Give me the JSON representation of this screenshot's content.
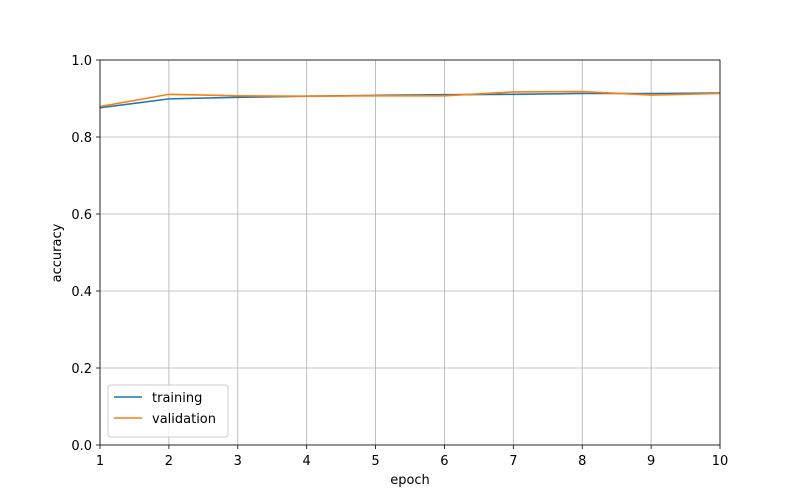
{
  "chart_data": {
    "type": "line",
    "x_label": "epoch",
    "y_label": "accuracy",
    "x": [
      1,
      2,
      3,
      4,
      5,
      6,
      7,
      8,
      9,
      10
    ],
    "series": [
      {
        "name": "training",
        "color": "#1f77b4",
        "values": [
          0.876,
          0.899,
          0.903,
          0.906,
          0.908,
          0.91,
          0.911,
          0.913,
          0.913,
          0.914
        ]
      },
      {
        "name": "validation",
        "color": "#ff7f0e",
        "values": [
          0.879,
          0.911,
          0.907,
          0.906,
          0.907,
          0.907,
          0.917,
          0.918,
          0.909,
          0.913
        ]
      }
    ],
    "xlim": [
      1,
      10
    ],
    "xticks": [
      1,
      2,
      3,
      4,
      5,
      6,
      7,
      8,
      9,
      10
    ],
    "ylim": [
      0,
      1
    ],
    "yticks": [
      {
        "value": 0,
        "label": "0.0"
      },
      0.2,
      0.4,
      0.6,
      0.8,
      {
        "value": 1,
        "label": "1.0"
      }
    ],
    "grid": true,
    "legend": "lower left"
  }
}
